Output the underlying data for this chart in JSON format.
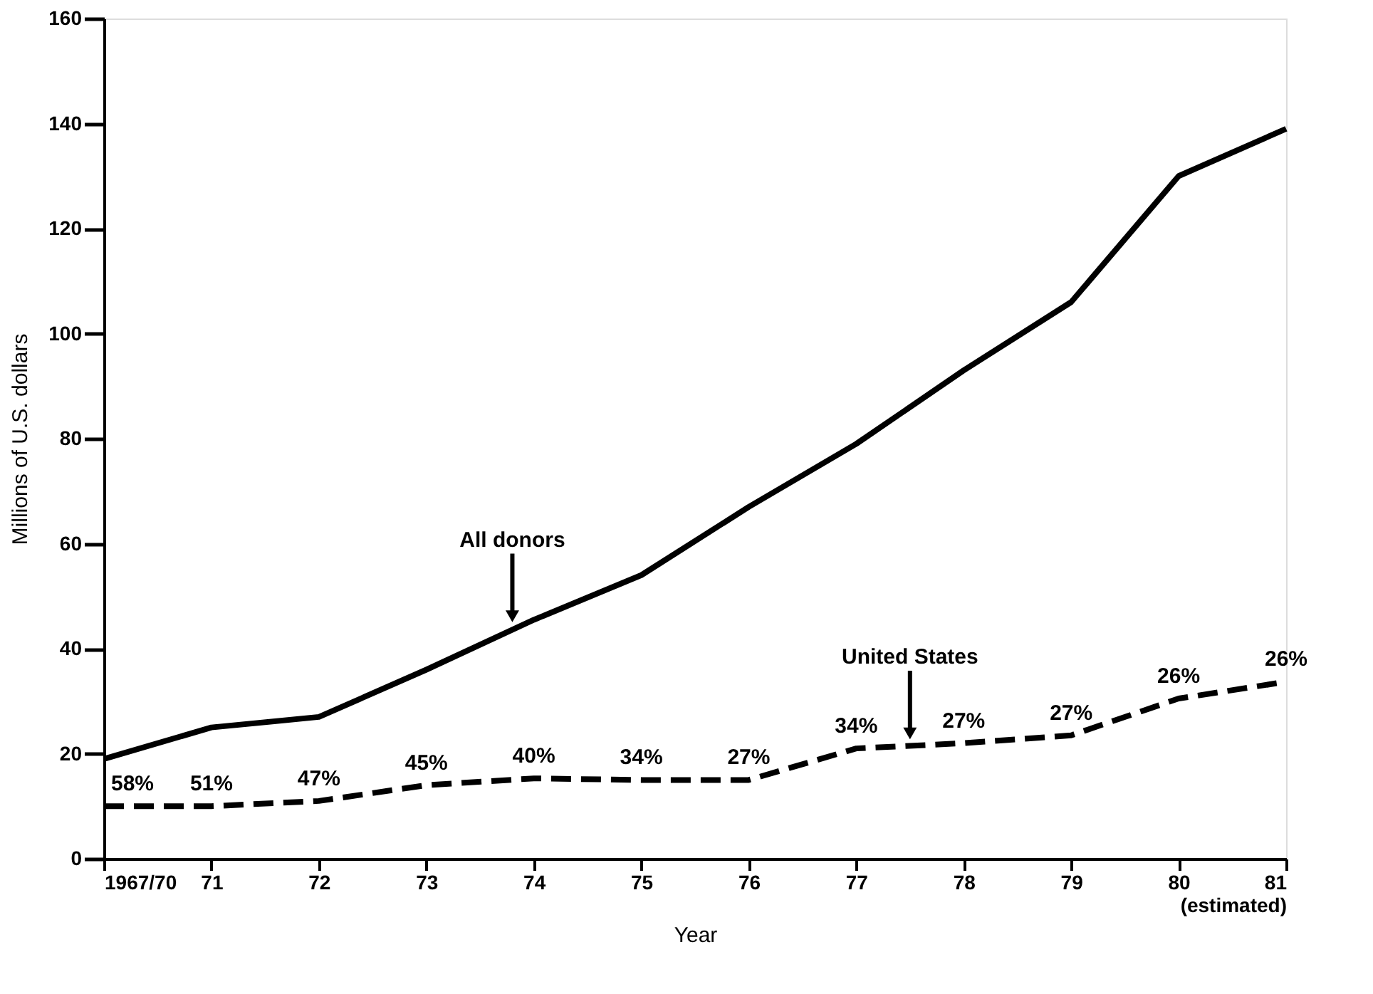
{
  "chart_data": {
    "type": "line",
    "xlabel": "Year",
    "ylabel": "Millions of U.S. dollars",
    "x": [
      70,
      71,
      72,
      73,
      74,
      75,
      76,
      77,
      78,
      79,
      80,
      81
    ],
    "xlim": [
      70,
      81
    ],
    "xticks": [
      {
        "value": 70,
        "label": "1967/70"
      },
      71,
      72,
      73,
      74,
      75,
      76,
      77,
      78,
      79,
      80,
      {
        "value": 81,
        "label": "81 (estimated)"
      }
    ],
    "series": [
      {
        "type": "line",
        "color": "#000000",
        "line_style": "solid",
        "values": [
          19,
          25,
          27,
          36,
          45.5,
          54,
          67,
          79,
          93,
          106,
          130,
          139
        ]
      },
      {
        "type": "line",
        "color": "#000000",
        "line_style": "dashed",
        "values": [
          10,
          10,
          11,
          14,
          15.3,
          15,
          15,
          21,
          22,
          23.5,
          30.5,
          33.7
        ]
      }
    ],
    "ylim": [
      0,
      160
    ],
    "yticks": [
      0,
      20,
      40,
      60,
      80,
      100,
      120,
      140,
      160
    ],
    "grid": false,
    "marker": "none",
    "annotations": [
      {
        "text": "All donors",
        "x": 73.8,
        "y": 44
      },
      {
        "text": "United States",
        "x": 77.5,
        "y": 21.7
      },
      {
        "text": "58%",
        "x": 70,
        "y": 10
      },
      {
        "text": "51%",
        "x": 71,
        "y": 10
      },
      {
        "text": "47%",
        "x": 72,
        "y": 11
      },
      {
        "text": "45%",
        "x": 73,
        "y": 14
      },
      {
        "text": "40%",
        "x": 74,
        "y": 15.3
      },
      {
        "text": "34%",
        "x": 75,
        "y": 15
      },
      {
        "text": "27%",
        "x": 76,
        "y": 15
      },
      {
        "text": "34%",
        "x": 77,
        "y": 21
      },
      {
        "text": "27%",
        "x": 78,
        "y": 22
      },
      {
        "text": "27%",
        "x": 79,
        "y": 23.5
      },
      {
        "text": "26%",
        "x": 80,
        "y": 30.5
      },
      {
        "text": "26%",
        "x": 81,
        "y": 33.7
      }
    ]
  }
}
